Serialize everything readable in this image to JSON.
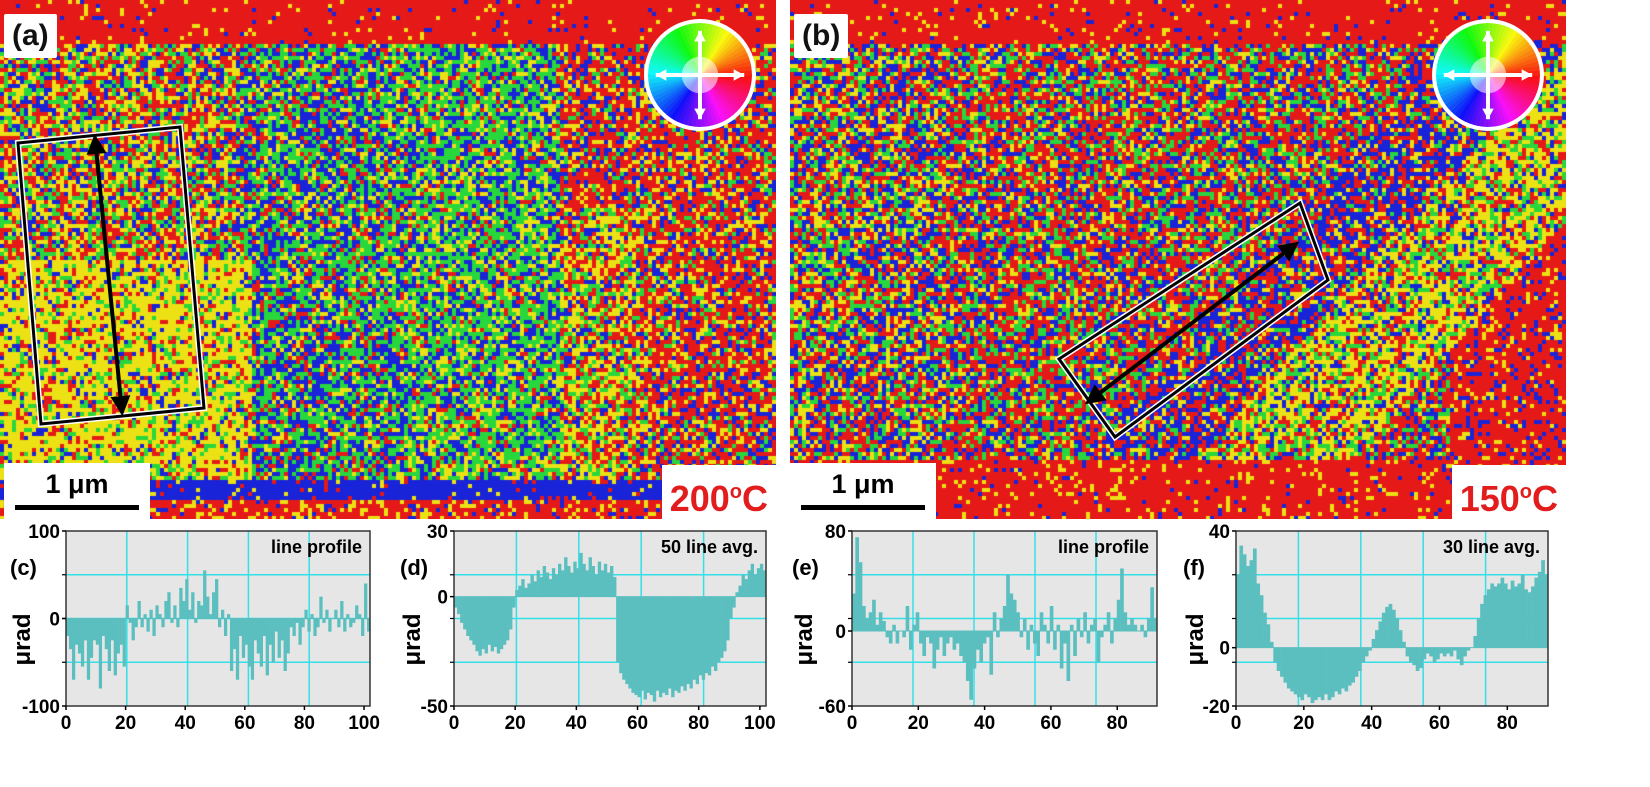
{
  "figure": {
    "maps": [
      {
        "panel": "(a)",
        "scalebar": "1 μm",
        "temperature": "200",
        "temp_unit": "C",
        "degree": "o"
      },
      {
        "panel": "(b)",
        "scalebar": "1 μm",
        "temperature": "150",
        "temp_unit": "C",
        "degree": "o"
      }
    ]
  },
  "chart_data": [
    {
      "type": "bar",
      "panel": "(c)",
      "annotation": "line profile",
      "ylabel": "μrad",
      "xlabel": "",
      "xlim": [
        0,
        102
      ],
      "ylim": [
        -100,
        100
      ],
      "xticks": [
        0,
        20,
        40,
        60,
        80,
        100
      ],
      "yticks": [
        -100,
        0,
        100
      ],
      "yticks_labels": [
        "-100",
        "0",
        "100"
      ],
      "values": [
        -20,
        -35,
        -70,
        -30,
        -40,
        -55,
        -25,
        -70,
        -45,
        -25,
        -30,
        -80,
        -20,
        -35,
        -60,
        -25,
        -65,
        -40,
        -30,
        -55,
        15,
        -5,
        -25,
        -10,
        20,
        -10,
        5,
        -15,
        10,
        -20,
        15,
        5,
        -10,
        20,
        30,
        -5,
        15,
        -10,
        35,
        20,
        45,
        10,
        30,
        -5,
        20,
        15,
        55,
        25,
        5,
        30,
        45,
        -10,
        10,
        -20,
        5,
        -60,
        -35,
        -70,
        -20,
        -45,
        -30,
        -55,
        -70,
        -25,
        -40,
        -55,
        -20,
        -65,
        -30,
        -50,
        -15,
        -45,
        -25,
        -60,
        -40,
        -10,
        -20,
        -5,
        -30,
        -10,
        10,
        -15,
        5,
        -20,
        -10,
        25,
        -5,
        10,
        -15,
        0,
        10,
        -10,
        20,
        -15,
        5,
        -10,
        -5,
        15,
        5,
        -20,
        40,
        -15
      ]
    },
    {
      "type": "bar",
      "panel": "(d)",
      "annotation": "50 line avg.",
      "ylabel": "μrad",
      "xlabel": "",
      "xlim": [
        0,
        102
      ],
      "ylim": [
        -50,
        30
      ],
      "xticks": [
        0,
        20,
        40,
        60,
        80,
        100
      ],
      "yticks": [
        -50,
        0,
        30
      ],
      "yticks_labels": [
        "-50",
        "0",
        "30"
      ],
      "values": [
        -5,
        -8,
        -12,
        -15,
        -18,
        -20,
        -22,
        -25,
        -27,
        -24,
        -26,
        -22,
        -25,
        -23,
        -26,
        -24,
        -22,
        -20,
        -15,
        -5,
        3,
        5,
        8,
        4,
        6,
        10,
        7,
        12,
        9,
        14,
        11,
        8,
        13,
        10,
        15,
        12,
        18,
        14,
        11,
        16,
        13,
        20,
        15,
        12,
        18,
        14,
        10,
        16,
        12,
        15,
        11,
        14,
        9,
        -30,
        -35,
        -38,
        -40,
        -42,
        -44,
        -45,
        -46,
        -43,
        -47,
        -44,
        -45,
        -48,
        -43,
        -46,
        -44,
        -45,
        -42,
        -46,
        -43,
        -44,
        -41,
        -43,
        -40,
        -42,
        -38,
        -40,
        -36,
        -38,
        -35,
        -36,
        -32,
        -34,
        -30,
        -28,
        -25,
        -20,
        -10,
        -5,
        2,
        5,
        10,
        8,
        12,
        15,
        10,
        13,
        15,
        12
      ]
    },
    {
      "type": "bar",
      "panel": "(e)",
      "annotation": "line profile",
      "ylabel": "μrad",
      "xlabel": "",
      "xlim": [
        0,
        92
      ],
      "ylim": [
        -60,
        80
      ],
      "xticks": [
        0,
        20,
        40,
        60,
        80
      ],
      "yticks": [
        -60,
        0,
        80
      ],
      "yticks_labels": [
        "-60",
        "0",
        "80"
      ],
      "values": [
        30,
        75,
        55,
        20,
        10,
        15,
        25,
        5,
        15,
        8,
        -5,
        -10,
        5,
        -10,
        0,
        -5,
        20,
        -15,
        5,
        15,
        -10,
        -20,
        -5,
        -10,
        -30,
        -15,
        -5,
        -20,
        -10,
        -5,
        -15,
        -10,
        -20,
        -25,
        -40,
        -55,
        -30,
        -15,
        -25,
        -10,
        -5,
        -35,
        15,
        -5,
        10,
        20,
        45,
        30,
        25,
        15,
        -5,
        10,
        -15,
        5,
        -10,
        -20,
        15,
        5,
        -10,
        20,
        -15,
        5,
        -30,
        -10,
        -40,
        5,
        -20,
        10,
        -5,
        15,
        -10,
        5,
        10,
        -25,
        -5,
        5,
        15,
        -10,
        10,
        25,
        50,
        15,
        5,
        10,
        5,
        0,
        5,
        -5,
        10,
        35,
        10
      ]
    },
    {
      "type": "bar",
      "panel": "(f)",
      "annotation": "30 line avg.",
      "ylabel": "μrad",
      "xlabel": "",
      "xlim": [
        0,
        92
      ],
      "ylim": [
        -20,
        40
      ],
      "xticks": [
        0,
        20,
        40,
        60,
        80
      ],
      "yticks": [
        -20,
        0,
        40
      ],
      "yticks_labels": [
        "-20",
        "0",
        "40"
      ],
      "values": [
        25,
        35,
        32,
        28,
        30,
        34,
        22,
        18,
        12,
        8,
        2,
        -5,
        -8,
        -10,
        -12,
        -14,
        -15,
        -16,
        -17,
        -18,
        -16,
        -17,
        -19,
        -18,
        -17,
        -18,
        -16,
        -18,
        -17,
        -15,
        -16,
        -14,
        -15,
        -13,
        -12,
        -10,
        -8,
        -5,
        -3,
        -1,
        3,
        6,
        9,
        12,
        14,
        15,
        13,
        10,
        6,
        2,
        -3,
        -5,
        -6,
        -8,
        -7,
        -4,
        -2,
        -3,
        -5,
        -4,
        -2,
        -3,
        -2,
        -3,
        -1,
        -4,
        -6,
        -3,
        -1,
        0,
        4,
        10,
        15,
        18,
        20,
        22,
        21,
        22,
        24,
        22,
        20,
        23,
        21,
        22,
        25,
        20,
        19,
        21,
        24,
        26,
        30,
        25
      ]
    }
  ]
}
